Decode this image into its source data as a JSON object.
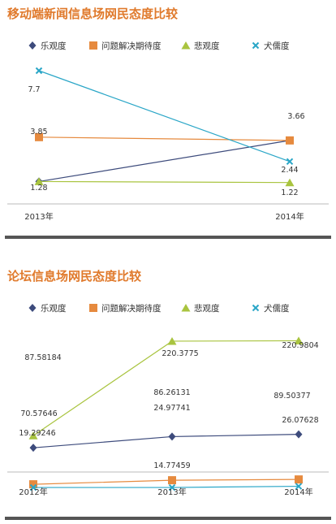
{
  "chart_data": [
    {
      "type": "line",
      "title": "移动端新闻信息场网民态度比较",
      "categories": [
        "2013年",
        "2014年"
      ],
      "legend_position": "top",
      "ylim": [
        0.5,
        8.5
      ],
      "series": [
        {
          "name": "乐观度",
          "color": "#3d4b7c",
          "marker": "diamond",
          "values": [
            1.28,
            3.66
          ],
          "labels": [
            "",
            "3.66"
          ]
        },
        {
          "name": "问题解决期待度",
          "color": "#e68a3e",
          "marker": "square",
          "values": [
            3.85,
            3.66
          ],
          "labels": [
            "3.85",
            ""
          ]
        },
        {
          "name": "悲观度",
          "color": "#a9c43f",
          "marker": "triangle",
          "values": [
            1.28,
            1.22
          ],
          "labels": [
            "1.28",
            "1.22"
          ]
        },
        {
          "name": "犬儒度",
          "color": "#2aa6c7",
          "marker": "x",
          "values": [
            7.7,
            2.44
          ],
          "labels": [
            "7.7",
            "2.44"
          ]
        }
      ]
    },
    {
      "type": "line",
      "title": "论坛信息场网民态度比较",
      "categories": [
        "2012年",
        "2013年",
        "2014年"
      ],
      "legend_position": "top",
      "ylim": [
        0,
        250
      ],
      "series": [
        {
          "name": "乐观度",
          "color": "#3d4b7c",
          "marker": "diamond",
          "values": [
            70.57646,
            86.26131,
            89.50377
          ],
          "labels": [
            "70.57646",
            "86.26131",
            "89.50377"
          ]
        },
        {
          "name": "问题解决期待度",
          "color": "#e68a3e",
          "marker": "square",
          "values": [
            19.29246,
            24.97741,
            26.07628
          ],
          "labels": [
            "19.29246",
            "24.97741",
            "26.07628"
          ]
        },
        {
          "name": "悲观度",
          "color": "#a9c43f",
          "marker": "triangle",
          "values": [
            87.58184,
            220.3775,
            220.9804
          ],
          "labels": [
            "87.58184",
            "220.3775",
            "220.9804"
          ]
        },
        {
          "name": "犬儒度",
          "color": "#2aa6c7",
          "marker": "x",
          "values": [
            14.77459,
            14.77459,
            16.5
          ],
          "labels": [
            "",
            "14.77459",
            ""
          ]
        }
      ]
    }
  ]
}
